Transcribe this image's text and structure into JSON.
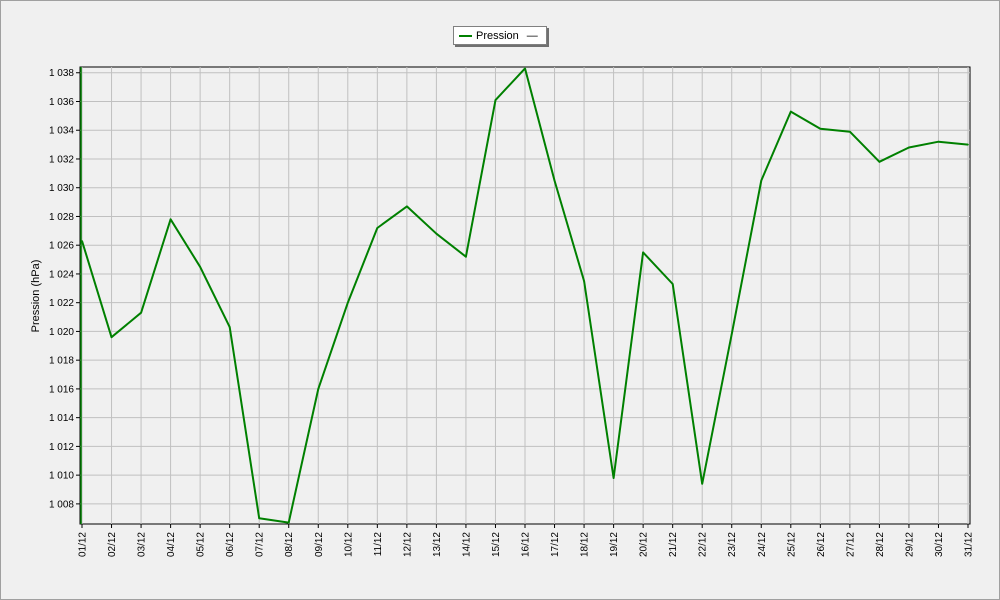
{
  "chart_data": {
    "type": "line",
    "title": "",
    "xlabel": "",
    "ylabel": "Pression (hPa)",
    "ylim": [
      1006.6,
      1038.4
    ],
    "yticks": [
      1008,
      1010,
      1012,
      1014,
      1016,
      1018,
      1020,
      1022,
      1024,
      1026,
      1028,
      1030,
      1032,
      1034,
      1036,
      1038
    ],
    "ytick_labels": [
      "1 008",
      "1 010",
      "1 012",
      "1 014",
      "1 016",
      "1 018",
      "1 020",
      "1 022",
      "1 024",
      "1 026",
      "1 028",
      "1 030",
      "1 032",
      "1 034",
      "1 036",
      "1 038"
    ],
    "grid": true,
    "legend_position": "top-center",
    "legend_symbol": "—",
    "categories": [
      "01/12",
      "02/12",
      "03/12",
      "04/12",
      "05/12",
      "06/12",
      "07/12",
      "08/12",
      "09/12",
      "10/12",
      "11/12",
      "12/12",
      "13/12",
      "14/12",
      "15/12",
      "16/12",
      "17/12",
      "18/12",
      "19/12",
      "20/12",
      "21/12",
      "22/12",
      "23/12",
      "24/12",
      "25/12",
      "26/12",
      "27/12",
      "28/12",
      "29/12",
      "30/12",
      "31/12"
    ],
    "series": [
      {
        "name": "Pression",
        "color": "#008000",
        "values": [
          1026.3,
          1019.6,
          1021.3,
          1027.8,
          1024.5,
          1020.3,
          1007.0,
          1006.7,
          1016.0,
          1022.0,
          1027.2,
          1028.7,
          1026.8,
          1025.2,
          1036.1,
          1038.3,
          1030.5,
          1023.5,
          1009.8,
          1025.5,
          1023.3,
          1009.4,
          1019.8,
          1030.5,
          1035.3,
          1034.1,
          1033.9,
          1031.8,
          1032.8,
          1033.2,
          1033.0
        ]
      }
    ]
  }
}
